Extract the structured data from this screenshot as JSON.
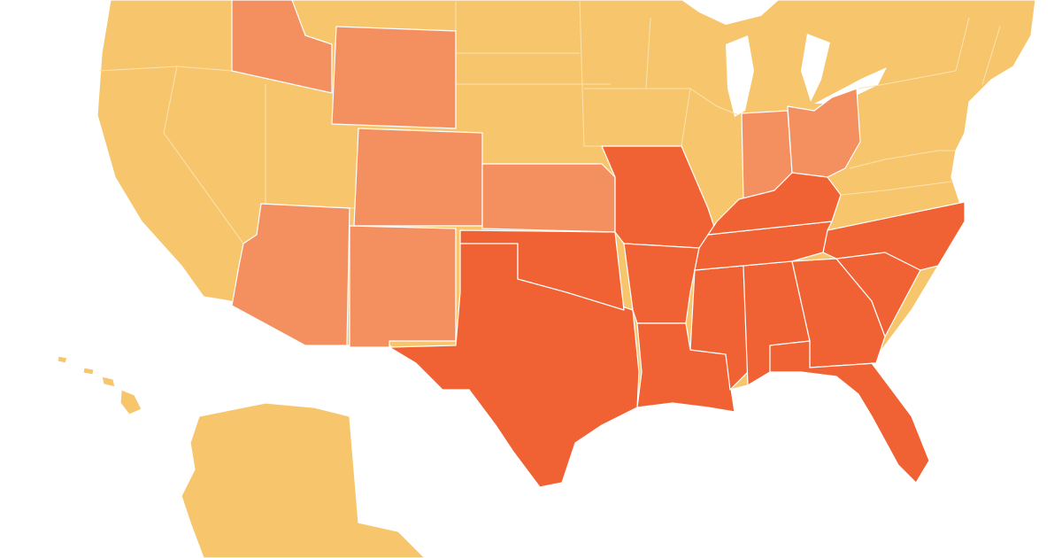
{
  "map": {
    "classes": [
      {
        "color": "#f7c56c"
      },
      {
        "color": "#f48f60"
      },
      {
        "color": "#f06234"
      }
    ],
    "land_border_color": "#fbe3b0"
  }
}
